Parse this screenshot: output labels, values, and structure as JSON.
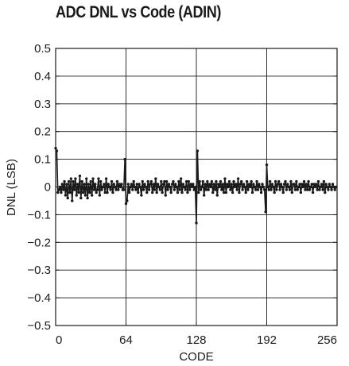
{
  "chart_data": {
    "type": "line",
    "title": "ADC DNL vs Code (ADIN)",
    "xlabel": "CODE",
    "ylabel": "DNL (LSB)",
    "xlim": [
      0,
      256
    ],
    "ylim": [
      -0.5,
      0.5
    ],
    "x_ticks": [
      0,
      64,
      128,
      192,
      256
    ],
    "x_tick_labels": [
      "0",
      "64",
      "128",
      "192",
      "256"
    ],
    "y_ticks": [
      0.5,
      0.4,
      0.3,
      0.2,
      0.1,
      0,
      -0.1,
      -0.2,
      -0.3,
      -0.4,
      -0.5
    ],
    "y_tick_labels": [
      "0.5",
      "0.4",
      "0.3",
      "0.2",
      "0.1",
      "0",
      "−0.1",
      "−0.2",
      "−0.3",
      "−0.4",
      "−0.5"
    ],
    "grid": true,
    "series_color": "#1a1a1a",
    "series": [
      {
        "x": [
          0,
          1,
          2,
          3,
          4,
          5,
          6,
          7,
          8,
          9,
          10,
          11,
          12,
          13,
          14,
          15,
          16,
          17,
          18,
          19,
          20,
          21,
          22,
          23,
          24,
          25,
          26,
          27,
          28,
          29,
          30,
          31,
          32,
          33,
          34,
          35,
          36,
          37,
          38,
          39,
          40,
          41,
          42,
          43,
          44,
          45,
          46,
          47,
          48,
          49,
          50,
          51,
          52,
          53,
          54,
          55,
          56,
          57,
          58,
          59,
          60,
          61,
          62,
          63,
          64,
          65,
          66,
          67,
          68,
          69,
          70,
          71,
          72,
          73,
          74,
          75,
          76,
          77,
          78,
          79,
          80,
          81,
          82,
          83,
          84,
          85,
          86,
          87,
          88,
          89,
          90,
          91,
          92,
          93,
          94,
          95,
          96,
          97,
          98,
          99,
          100,
          101,
          102,
          103,
          104,
          105,
          106,
          107,
          108,
          109,
          110,
          111,
          112,
          113,
          114,
          115,
          116,
          117,
          118,
          119,
          120,
          121,
          122,
          123,
          124,
          125,
          126,
          127,
          128,
          129,
          130,
          131,
          132,
          133,
          134,
          135,
          136,
          137,
          138,
          139,
          140,
          141,
          142,
          143,
          144,
          145,
          146,
          147,
          148,
          149,
          150,
          151,
          152,
          153,
          154,
          155,
          156,
          157,
          158,
          159,
          160,
          161,
          162,
          163,
          164,
          165,
          166,
          167,
          168,
          169,
          170,
          171,
          172,
          173,
          174,
          175,
          176,
          177,
          178,
          179,
          180,
          181,
          182,
          183,
          184,
          185,
          186,
          187,
          188,
          189,
          190,
          191,
          192,
          193,
          194,
          195,
          196,
          197,
          198,
          199,
          200,
          201,
          202,
          203,
          204,
          205,
          206,
          207,
          208,
          209,
          210,
          211,
          212,
          213,
          214,
          215,
          216,
          217,
          218,
          219,
          220,
          221,
          222,
          223,
          224,
          225,
          226,
          227,
          228,
          229,
          230,
          231,
          232,
          233,
          234,
          235,
          236,
          237,
          238,
          239,
          240,
          241,
          242,
          243,
          244,
          245,
          246,
          247,
          248,
          249,
          250,
          251,
          252,
          253,
          254,
          255
        ],
        "values": [
          0.14,
          0.13,
          -0.02,
          -0.01,
          0.0,
          -0.02,
          0.01,
          -0.01,
          0.02,
          -0.03,
          0.01,
          -0.04,
          0.02,
          -0.02,
          0.03,
          -0.05,
          0.02,
          -0.01,
          0.03,
          -0.03,
          0.01,
          -0.02,
          0.04,
          -0.04,
          0.02,
          -0.02,
          0.01,
          -0.03,
          0.03,
          -0.04,
          0.01,
          -0.02,
          0.02,
          -0.03,
          0.03,
          -0.01,
          0.01,
          -0.02,
          -0.01,
          0.03,
          -0.03,
          0.02,
          -0.01,
          0.0,
          0.01,
          -0.02,
          0.03,
          -0.02,
          0.01,
          0.0,
          -0.01,
          0.02,
          -0.02,
          0.01,
          0.0,
          -0.01,
          0.02,
          -0.01,
          0.01,
          0.0,
          0.01,
          -0.01,
          -0.01,
          0.1,
          -0.06,
          -0.05,
          0.01,
          -0.02,
          0.0,
          0.01,
          -0.01,
          0.02,
          0.0,
          -0.01,
          0.01,
          -0.02,
          0.01,
          0.0,
          -0.03,
          0.02,
          -0.01,
          0.01,
          0.0,
          -0.02,
          0.02,
          -0.01,
          0.01,
          0.02,
          -0.02,
          0.01,
          -0.01,
          0.03,
          -0.02,
          0.01,
          0.0,
          -0.01,
          0.02,
          -0.02,
          0.01,
          0.02,
          -0.03,
          0.02,
          -0.01,
          0.01,
          0.0,
          -0.02,
          0.01,
          0.02,
          -0.01,
          0.01,
          0.0,
          -0.02,
          0.02,
          -0.01,
          0.03,
          -0.02,
          0.01,
          0.0,
          -0.01,
          0.02,
          -0.02,
          0.02,
          -0.01,
          0.01,
          0.0,
          0.01,
          -0.01,
          0.0,
          -0.13,
          0.13,
          -0.02,
          0.02,
          -0.01,
          0.0,
          0.02,
          -0.03,
          0.01,
          -0.01,
          0.02,
          -0.01,
          0.01,
          0.0,
          0.02,
          -0.02,
          0.01,
          -0.01,
          0.02,
          -0.03,
          0.01,
          0.0,
          0.02,
          -0.01,
          0.01,
          -0.02,
          0.03,
          -0.02,
          0.01,
          0.0,
          0.02,
          -0.01,
          0.01,
          -0.02,
          0.02,
          0.0,
          0.01,
          -0.01,
          0.03,
          -0.02,
          0.01,
          0.02,
          -0.01,
          0.01,
          0.0,
          -0.02,
          0.02,
          -0.01,
          0.01,
          0.0,
          0.02,
          -0.02,
          0.01,
          0.0,
          -0.01,
          0.02,
          -0.01,
          0.01,
          0.0,
          -0.02,
          0.01,
          0.0,
          -0.01,
          -0.09,
          0.08,
          0.0,
          -0.01,
          0.02,
          -0.01,
          0.01,
          0.0,
          -0.02,
          0.02,
          -0.01,
          0.01,
          0.02,
          -0.01,
          0.01,
          0.0,
          -0.02,
          0.01,
          0.02,
          -0.01,
          0.01,
          0.0,
          -0.01,
          0.02,
          -0.02,
          0.01,
          0.01,
          -0.01,
          0.02,
          -0.01,
          0.0,
          0.01,
          -0.02,
          0.01,
          0.0,
          0.02,
          -0.01,
          0.01,
          -0.01,
          0.02,
          -0.01,
          0.0,
          0.01,
          -0.02,
          0.01,
          0.0,
          0.01,
          -0.01,
          0.02,
          -0.01,
          0.0,
          0.01,
          -0.01,
          0.02,
          -0.02,
          0.01,
          0.0,
          -0.01,
          0.01,
          0.0,
          -0.01,
          0.01,
          0.0,
          -0.01,
          0.0
        ]
      }
    ]
  }
}
